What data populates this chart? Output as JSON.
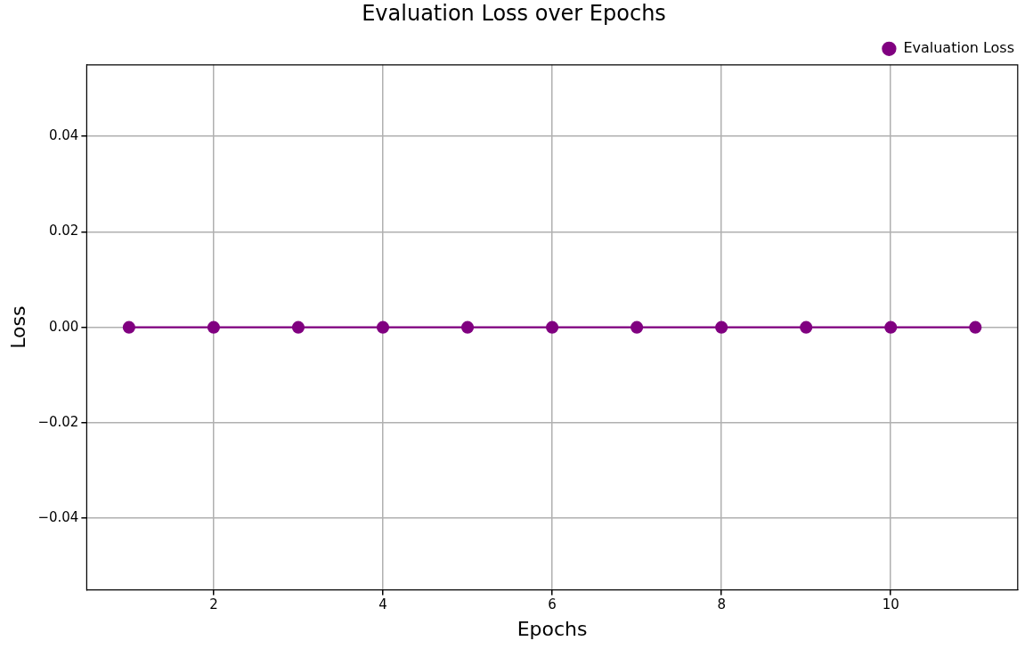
{
  "chart_data": {
    "type": "line",
    "title": "Evaluation Loss over Epochs",
    "xlabel": "Epochs",
    "ylabel": "Loss",
    "x": [
      1,
      2,
      3,
      4,
      5,
      6,
      7,
      8,
      9,
      10,
      11
    ],
    "series": [
      {
        "name": "Evaluation Loss",
        "color": "#800080",
        "values": [
          0,
          0,
          0,
          0,
          0,
          0,
          0,
          0,
          0,
          0,
          0
        ]
      }
    ],
    "xlim": [
      0.5,
      11.5
    ],
    "xticks": [
      2,
      4,
      6,
      8,
      10
    ],
    "ylim": [
      -0.055,
      0.055
    ],
    "yticks": [
      {
        "value": -0.04,
        "label": "−0.04"
      },
      {
        "value": -0.02,
        "label": "−0.02"
      },
      {
        "value": 0,
        "label": "0.00"
      },
      {
        "value": 0.02,
        "label": "0.02"
      },
      {
        "value": 0.04,
        "label": "0.04"
      }
    ],
    "grid": true,
    "legend": "top right",
    "marker": "circle",
    "line_style": "solid"
  }
}
